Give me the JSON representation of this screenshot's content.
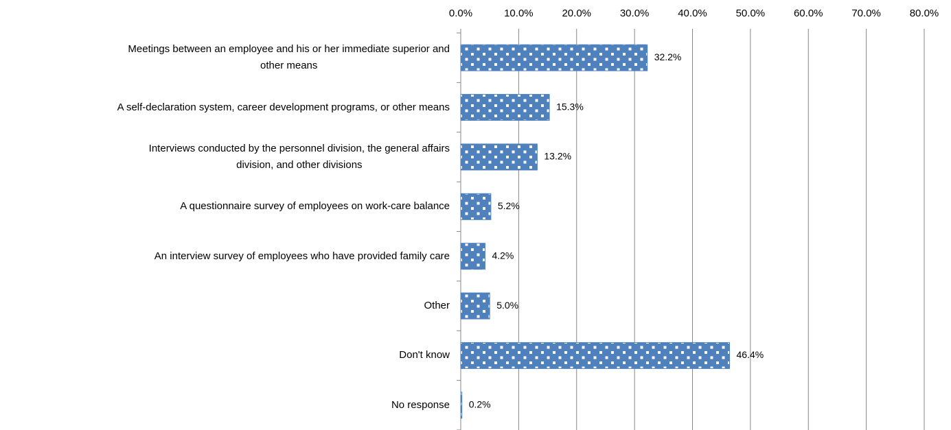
{
  "chart_data": {
    "type": "hbar",
    "categories": [
      "Meetings between an employee and his or her immediate superior and\nother means",
      "A self-declaration system, career development programs, or other means",
      "Interviews conducted by the personnel division, the general affairs\ndivision, and other divisions",
      "A questionnaire survey of employees on work-care balance",
      "An interview survey of employees who have provided family care",
      "Other",
      "Don't know",
      "No response"
    ],
    "values": [
      32.2,
      15.3,
      13.2,
      5.2,
      4.2,
      5.0,
      46.4,
      0.2
    ],
    "value_labels": [
      "32.2%",
      "15.3%",
      "13.2%",
      "5.2%",
      "4.2%",
      "5.0%",
      "46.4%",
      "0.2%"
    ],
    "color": "#4f81bd",
    "xlim": [
      0,
      80
    ],
    "xticks": [
      {
        "value": 0,
        "label": "0.0%"
      },
      {
        "value": 10,
        "label": "10.0%"
      },
      {
        "value": 20,
        "label": "20.0%"
      },
      {
        "value": 30,
        "label": "30.0%"
      },
      {
        "value": 40,
        "label": "40.0%"
      },
      {
        "value": 50,
        "label": "50.0%"
      },
      {
        "value": 60,
        "label": "60.0%"
      },
      {
        "value": 70,
        "label": "70.0%"
      },
      {
        "value": 80,
        "label": "80.0%"
      }
    ],
    "grid": true
  }
}
